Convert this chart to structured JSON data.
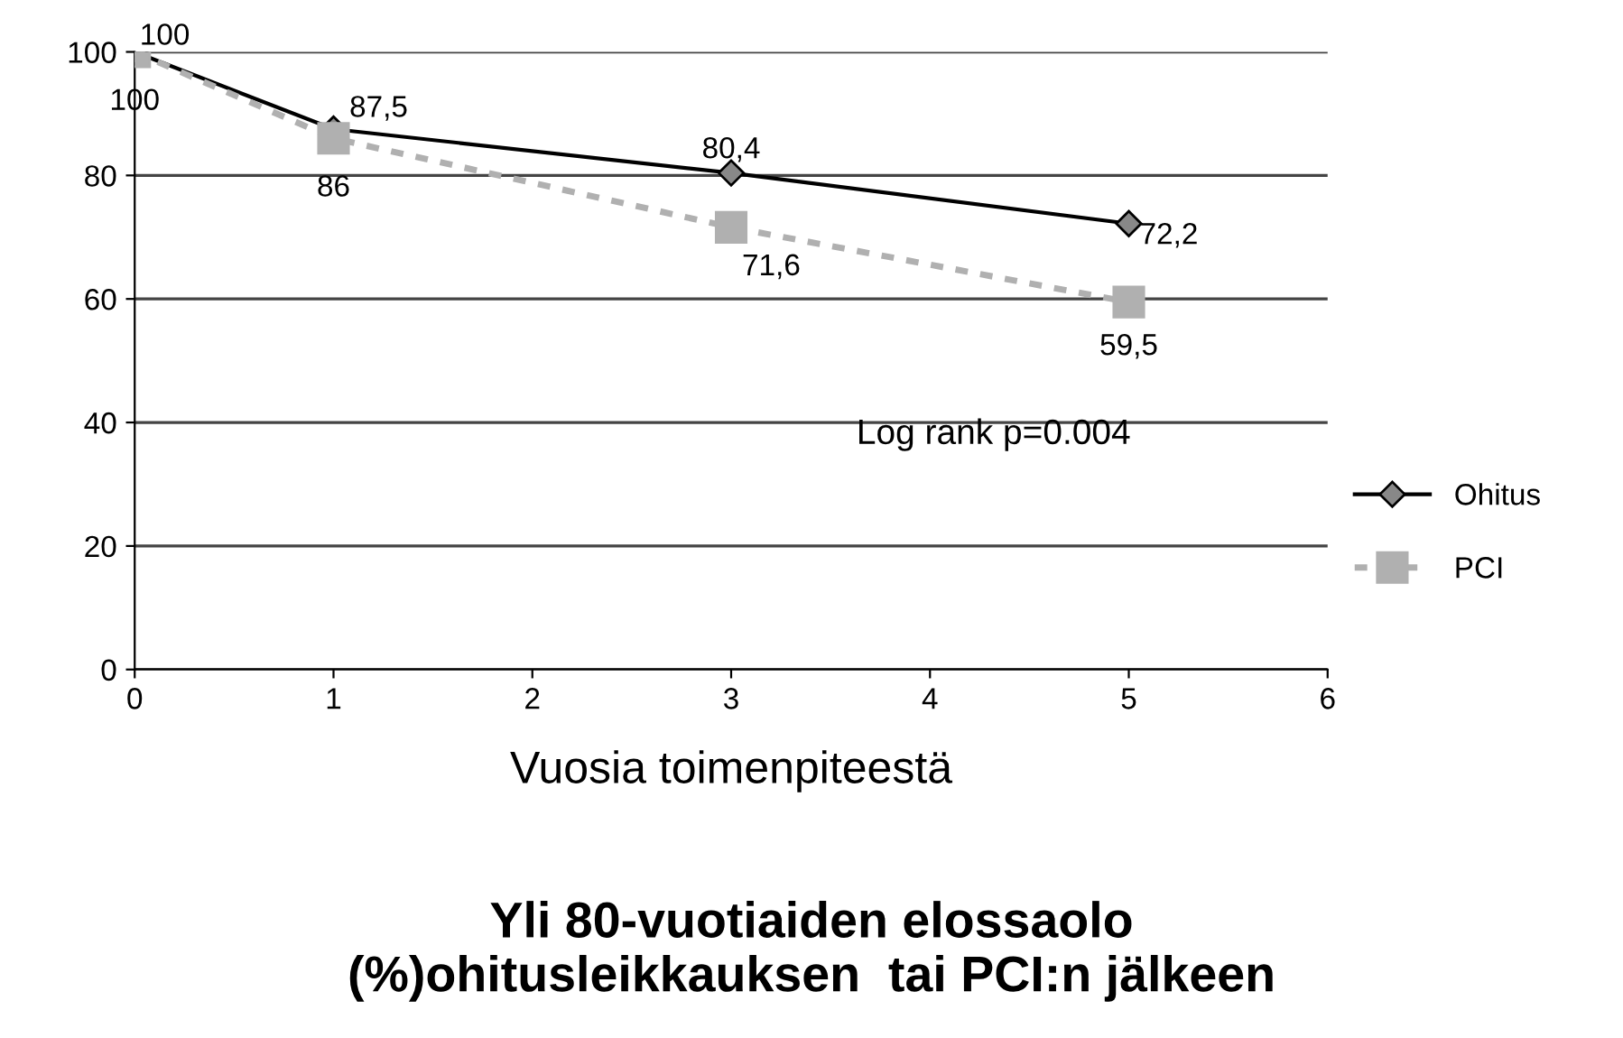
{
  "chart_data": {
    "type": "line",
    "title": "Yli 80-vuotiaiden elossaolo\n(%)ohitusleikkauksen  tai PCI:n jälkeen",
    "xlabel": "Vuosia toimenpiteestä",
    "x": [
      0,
      1,
      3,
      5
    ],
    "series": [
      {
        "name": "Ohitus",
        "color": "#000000",
        "values": [
          100,
          87.5,
          80.4,
          72.2
        ],
        "value_labels": [
          "100",
          "87,5",
          "80,4",
          "72,2"
        ],
        "marker": "diamond",
        "line_style": "solid"
      },
      {
        "name": "PCI",
        "color": "#b0b0b0",
        "values": [
          100,
          86,
          71.6,
          59.5
        ],
        "value_labels": [
          "100",
          "86",
          "71,6",
          "59,5"
        ],
        "marker": "square",
        "line_style": "dashed"
      }
    ],
    "annotations": [
      "Log rank p=0.004"
    ],
    "xlim": [
      0,
      6
    ],
    "xticks": [
      0,
      1,
      2,
      3,
      4,
      5,
      6
    ],
    "ylim": [
      0,
      100
    ],
    "yticks": [
      0,
      20,
      40,
      60,
      80,
      100
    ],
    "grid": "y",
    "legend": "right"
  }
}
